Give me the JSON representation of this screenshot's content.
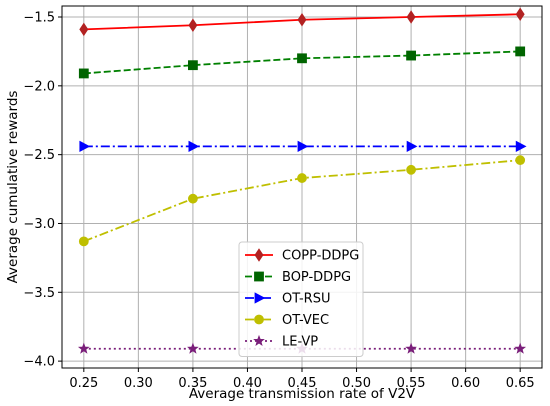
{
  "chart_data": {
    "type": "line",
    "title": "",
    "xlabel": "Average transmission rate of V2V",
    "ylabel": "Average cumulative rewards",
    "x": [
      0.25,
      0.35,
      0.45,
      0.55,
      0.65
    ],
    "xlim": [
      0.23,
      0.67
    ],
    "ylim": [
      -4.05,
      -1.42
    ],
    "xticks": [
      "0.25",
      "0.30",
      "0.35",
      "0.40",
      "0.45",
      "0.50",
      "0.55",
      "0.60",
      "0.65"
    ],
    "yticks": [
      "-1.5",
      "-2.0",
      "-2.5",
      "-3.0",
      "-3.5",
      "-4.0"
    ],
    "grid": true,
    "legend_position": "lower-center",
    "series": [
      {
        "name": "COPP-DDPG",
        "values": [
          -1.59,
          -1.56,
          -1.52,
          -1.5,
          -1.48
        ],
        "color": "#ff0000",
        "marker_color": "#b22222",
        "marker": "diamond",
        "line_style": "solid"
      },
      {
        "name": "BOP-DDPG",
        "values": [
          -1.91,
          -1.85,
          -1.8,
          -1.78,
          -1.75
        ],
        "color": "#008000",
        "marker_color": "#006400",
        "marker": "square",
        "line_style": "dashed"
      },
      {
        "name": "OT-RSU",
        "values": [
          -2.44,
          -2.44,
          -2.44,
          -2.44,
          -2.44
        ],
        "color": "#0000ff",
        "marker_color": "#0000ff",
        "marker": "triangle-right",
        "line_style": "dashdot"
      },
      {
        "name": "OT-VEC",
        "values": [
          -3.13,
          -2.82,
          -2.67,
          -2.61,
          -2.54
        ],
        "color": "#bfbf00",
        "marker_color": "#bfbf00",
        "marker": "circle",
        "line_style": "dashdot"
      },
      {
        "name": "LE-VP",
        "values": [
          -3.91,
          -3.91,
          -3.91,
          -3.91,
          -3.91
        ],
        "color": "#7a1f7a",
        "marker_color": "#7a1f7a",
        "marker": "star",
        "line_style": "dotted"
      }
    ]
  }
}
